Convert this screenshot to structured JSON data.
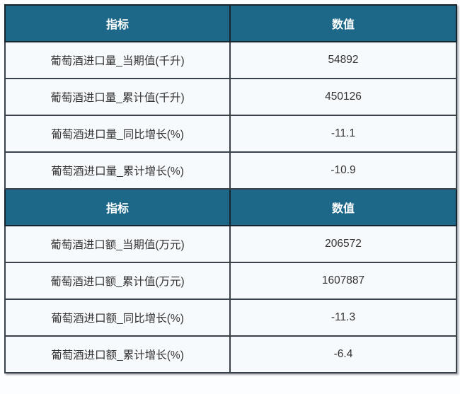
{
  "colors": {
    "header_bg": "#1d6789",
    "header_text": "#ffffff",
    "row_bg": "#f7fafd",
    "row_text": "#333333",
    "border_inner": "#39424a",
    "border_outer": "#1f2d38",
    "page_bg": "#fcfdff"
  },
  "table": {
    "sections": [
      {
        "header": {
          "indicator": "指标",
          "value": "数值"
        },
        "rows": [
          {
            "label": "葡萄酒进口量_当期值(千升)",
            "value": "54892"
          },
          {
            "label": "葡萄酒进口量_累计值(千升)",
            "value": "450126"
          },
          {
            "label": "葡萄酒进口量_同比增长(%)",
            "value": "-11.1"
          },
          {
            "label": "葡萄酒进口量_累计增长(%)",
            "value": "-10.9"
          }
        ]
      },
      {
        "header": {
          "indicator": "指标",
          "value": "数值"
        },
        "rows": [
          {
            "label": "葡萄酒进口额_当期值(万元)",
            "value": "206572"
          },
          {
            "label": "葡萄酒进口额_累计值(万元)",
            "value": "1607887"
          },
          {
            "label": "葡萄酒进口额_同比增长(%)",
            "value": "-11.3"
          },
          {
            "label": "葡萄酒进口额_累计增长(%)",
            "value": "-6.4"
          }
        ]
      }
    ]
  },
  "chart_data": {
    "type": "table",
    "columns": [
      "指标",
      "数值"
    ],
    "sections": [
      {
        "rows": [
          [
            "葡萄酒进口量_当期值(千升)",
            54892
          ],
          [
            "葡萄酒进口量_累计值(千升)",
            450126
          ],
          [
            "葡萄酒进口量_同比增长(%)",
            -11.1
          ],
          [
            "葡萄酒进口量_累计增长(%)",
            -10.9
          ]
        ]
      },
      {
        "rows": [
          [
            "葡萄酒进口额_当期值(万元)",
            206572
          ],
          [
            "葡萄酒进口额_累计值(万元)",
            1607887
          ],
          [
            "葡萄酒进口额_同比增长(%)",
            -11.3
          ],
          [
            "葡萄酒进口额_累计增长(%)",
            -6.4
          ]
        ]
      }
    ]
  }
}
